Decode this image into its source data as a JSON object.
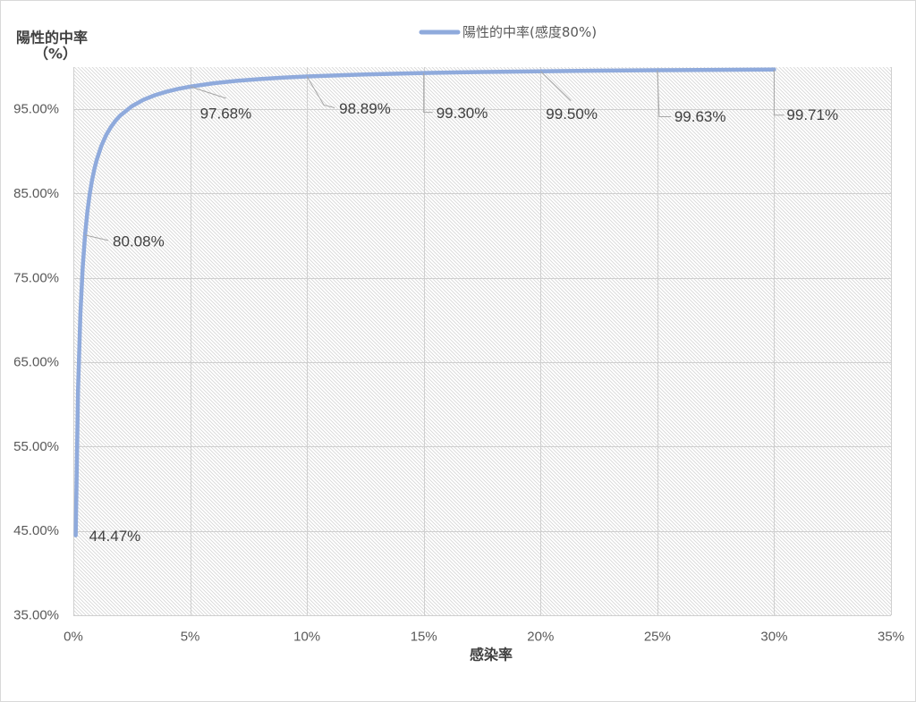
{
  "chart_data": {
    "type": "line",
    "xlabel": "感染率",
    "ylabel": "陽性的中率",
    "ylabel_unit": "（%）",
    "xlim": [
      0,
      35
    ],
    "ylim": [
      35,
      100
    ],
    "grid": true,
    "legend_position": "top",
    "x_ticks": [
      {
        "value": 0,
        "label": "0%"
      },
      {
        "value": 5,
        "label": "5%"
      },
      {
        "value": 10,
        "label": "10%"
      },
      {
        "value": 15,
        "label": "15%"
      },
      {
        "value": 20,
        "label": "20%"
      },
      {
        "value": 25,
        "label": "25%"
      },
      {
        "value": 30,
        "label": "30%"
      },
      {
        "value": 35,
        "label": "35%"
      }
    ],
    "y_ticks": [
      {
        "value": 35,
        "label": "35.00%"
      },
      {
        "value": 45,
        "label": "45.00%"
      },
      {
        "value": 55,
        "label": "55.00%"
      },
      {
        "value": 65,
        "label": "65.00%"
      },
      {
        "value": 75,
        "label": "75.00%"
      },
      {
        "value": 85,
        "label": "85.00%"
      },
      {
        "value": 95,
        "label": "95.00%"
      }
    ],
    "series": [
      {
        "name": "陽性的中率(感度80%)",
        "color": "#8faadc",
        "x": [
          0.1,
          0.2,
          0.3,
          0.4,
          0.5,
          0.6,
          0.7,
          0.8,
          0.9,
          1.0,
          1.2,
          1.4,
          1.6,
          1.8,
          2.0,
          2.5,
          3.0,
          3.5,
          4.0,
          4.5,
          5,
          6,
          7,
          8,
          9,
          10,
          12.5,
          15,
          17.5,
          20,
          22.5,
          25,
          27.5,
          30
        ],
        "y": [
          44.47,
          61.59,
          70.65,
          76.26,
          80.08,
          82.84,
          84.94,
          86.58,
          87.9,
          88.99,
          90.67,
          91.91,
          92.86,
          93.62,
          94.23,
          95.35,
          96.12,
          96.67,
          97.09,
          97.42,
          97.68,
          98.08,
          98.37,
          98.58,
          98.75,
          98.89,
          99.13,
          99.3,
          99.41,
          99.5,
          99.57,
          99.63,
          99.67,
          99.71
        ],
        "data_labels": [
          {
            "x": 0.1,
            "y": 44.47,
            "text": "44.47%"
          },
          {
            "x": 0.5,
            "y": 80.08,
            "text": "80.08%"
          },
          {
            "x": 5,
            "y": 97.68,
            "text": "97.68%"
          },
          {
            "x": 10,
            "y": 98.89,
            "text": "98.89%"
          },
          {
            "x": 15,
            "y": 99.3,
            "text": "99.30%"
          },
          {
            "x": 20,
            "y": 99.5,
            "text": "99.50%"
          },
          {
            "x": 25,
            "y": 99.63,
            "text": "99.63%"
          },
          {
            "x": 30,
            "y": 99.71,
            "text": "99.71%"
          }
        ]
      }
    ]
  }
}
